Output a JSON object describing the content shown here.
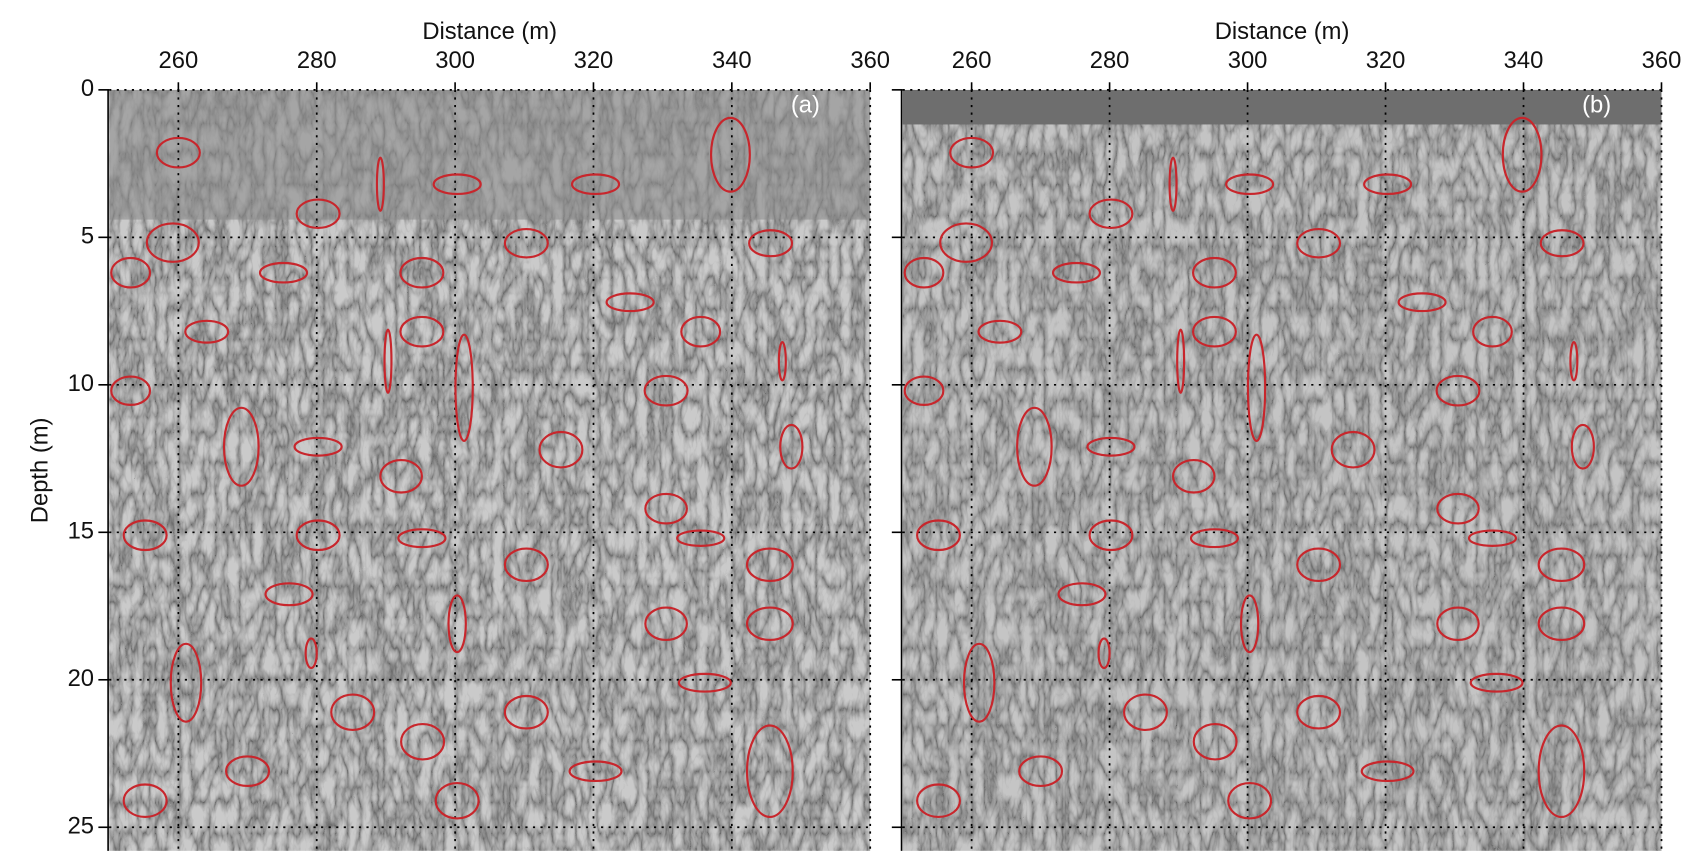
{
  "chart_data": [
    {
      "type": "annotated-image",
      "panel_label": "(a)",
      "xlabel": "Distance (m)",
      "ylabel": "Depth (m)",
      "xlim": [
        250,
        360
      ],
      "ylim": [
        0,
        25.8
      ],
      "xticks": [
        260,
        280,
        300,
        320,
        340,
        360
      ],
      "yticks": [
        0,
        5,
        10,
        15,
        20,
        25
      ],
      "grid": true,
      "show_ytick_labels": true,
      "color": "#c8262c",
      "ellipses": [
        [
          260,
          2.13,
          3.1,
          0.5
        ],
        [
          259.2,
          5.18,
          3.75,
          0.65
        ],
        [
          253.1,
          6.2,
          2.8,
          0.5
        ],
        [
          264.1,
          8.2,
          3.1,
          0.37
        ],
        [
          253.1,
          10.2,
          2.8,
          0.48
        ],
        [
          289.2,
          3.2,
          0.5,
          0.9
        ],
        [
          280.2,
          4.2,
          3.1,
          0.48
        ],
        [
          275.2,
          6.2,
          3.4,
          0.33
        ],
        [
          300.3,
          3.2,
          3.4,
          0.33
        ],
        [
          320.3,
          3.2,
          3.4,
          0.33
        ],
        [
          339.8,
          2.2,
          2.8,
          1.25
        ],
        [
          310.3,
          5.2,
          3.1,
          0.48
        ],
        [
          345.6,
          5.2,
          3.1,
          0.44
        ],
        [
          295.2,
          6.2,
          3.1,
          0.5
        ],
        [
          325.3,
          7.2,
          3.4,
          0.3
        ],
        [
          295.2,
          8.2,
          3.1,
          0.5
        ],
        [
          335.5,
          8.2,
          2.8,
          0.5
        ],
        [
          290.3,
          9.2,
          0.5,
          1.07
        ],
        [
          301.3,
          10.1,
          1.25,
          1.8
        ],
        [
          347.3,
          9.2,
          0.5,
          0.65
        ],
        [
          330.5,
          10.2,
          3.1,
          0.5
        ],
        [
          269.1,
          12.1,
          2.5,
          1.32
        ],
        [
          280.2,
          12.1,
          3.4,
          0.3
        ],
        [
          315.3,
          12.2,
          3.1,
          0.6
        ],
        [
          348.6,
          12.1,
          1.6,
          0.74
        ],
        [
          292.2,
          13.1,
          3,
          0.55
        ],
        [
          330.5,
          14.2,
          3,
          0.5
        ],
        [
          255.2,
          15.1,
          3.1,
          0.5
        ],
        [
          280.2,
          15.1,
          3.1,
          0.5
        ],
        [
          295.2,
          15.2,
          3.4,
          0.3
        ],
        [
          335.5,
          15.2,
          3.4,
          0.26
        ],
        [
          310.3,
          16.1,
          3.1,
          0.55
        ],
        [
          345.5,
          16.1,
          3.3,
          0.55
        ],
        [
          276,
          17.1,
          3.4,
          0.37
        ],
        [
          300.3,
          18.1,
          1.25,
          0.96
        ],
        [
          330.5,
          18.1,
          3,
          0.55
        ],
        [
          345.5,
          18.1,
          3.3,
          0.55
        ],
        [
          279.2,
          19.1,
          0.8,
          0.5
        ],
        [
          261.1,
          20.1,
          2.2,
          1.32
        ],
        [
          336.1,
          20.1,
          3.75,
          0.3
        ],
        [
          285.2,
          21.1,
          3.1,
          0.6
        ],
        [
          310.3,
          21.1,
          3.1,
          0.55
        ],
        [
          295.3,
          22.1,
          3.1,
          0.6
        ],
        [
          270,
          23.1,
          3.1,
          0.5
        ],
        [
          320.3,
          23.1,
          3.75,
          0.33
        ],
        [
          345.5,
          23.1,
          3.3,
          1.55
        ],
        [
          255.2,
          24.1,
          3.1,
          0.55
        ],
        [
          300.3,
          24.1,
          3.1,
          0.6
        ]
      ]
    },
    {
      "type": "annotated-image",
      "panel_label": "(b)",
      "xlabel": "Distance (m)",
      "xlim": [
        250,
        360
      ],
      "ylim": [
        0,
        25.8
      ],
      "xticks": [
        260,
        280,
        300,
        320,
        340,
        360
      ],
      "yticks": [
        0,
        5,
        10,
        15,
        20,
        25
      ],
      "grid": true,
      "show_ytick_labels": false,
      "color": "#c8262c",
      "ellipses": [
        [
          260,
          2.13,
          3.1,
          0.5
        ],
        [
          259.2,
          5.18,
          3.75,
          0.65
        ],
        [
          253.1,
          6.2,
          2.8,
          0.5
        ],
        [
          264.1,
          8.2,
          3.1,
          0.37
        ],
        [
          253.1,
          10.2,
          2.8,
          0.48
        ],
        [
          289.2,
          3.2,
          0.5,
          0.9
        ],
        [
          280.2,
          4.2,
          3.1,
          0.48
        ],
        [
          275.2,
          6.2,
          3.4,
          0.33
        ],
        [
          300.3,
          3.2,
          3.4,
          0.33
        ],
        [
          320.3,
          3.2,
          3.4,
          0.33
        ],
        [
          339.8,
          2.2,
          2.8,
          1.25
        ],
        [
          310.3,
          5.2,
          3.1,
          0.48
        ],
        [
          345.6,
          5.2,
          3.1,
          0.44
        ],
        [
          295.2,
          6.2,
          3.1,
          0.5
        ],
        [
          325.3,
          7.2,
          3.4,
          0.3
        ],
        [
          295.2,
          8.2,
          3.1,
          0.5
        ],
        [
          335.5,
          8.2,
          2.8,
          0.5
        ],
        [
          290.3,
          9.2,
          0.5,
          1.07
        ],
        [
          301.3,
          10.1,
          1.25,
          1.8
        ],
        [
          347.3,
          9.2,
          0.5,
          0.65
        ],
        [
          330.5,
          10.2,
          3.1,
          0.5
        ],
        [
          269.1,
          12.1,
          2.5,
          1.32
        ],
        [
          280.2,
          12.1,
          3.4,
          0.3
        ],
        [
          315.3,
          12.2,
          3.1,
          0.6
        ],
        [
          348.6,
          12.1,
          1.6,
          0.74
        ],
        [
          292.2,
          13.1,
          3,
          0.55
        ],
        [
          330.5,
          14.2,
          3,
          0.5
        ],
        [
          255.2,
          15.1,
          3.1,
          0.5
        ],
        [
          280.2,
          15.1,
          3.1,
          0.5
        ],
        [
          295.2,
          15.2,
          3.4,
          0.3
        ],
        [
          335.5,
          15.2,
          3.4,
          0.26
        ],
        [
          310.3,
          16.1,
          3.1,
          0.55
        ],
        [
          345.5,
          16.1,
          3.3,
          0.55
        ],
        [
          276,
          17.1,
          3.4,
          0.37
        ],
        [
          300.3,
          18.1,
          1.25,
          0.96
        ],
        [
          330.5,
          18.1,
          3,
          0.55
        ],
        [
          345.5,
          18.1,
          3.3,
          0.55
        ],
        [
          279.2,
          19.1,
          0.8,
          0.5
        ],
        [
          261.1,
          20.1,
          2.2,
          1.32
        ],
        [
          336.1,
          20.1,
          3.75,
          0.3
        ],
        [
          285.2,
          21.1,
          3.1,
          0.6
        ],
        [
          310.3,
          21.1,
          3.1,
          0.55
        ],
        [
          295.3,
          22.1,
          3.1,
          0.6
        ],
        [
          270,
          23.1,
          3.1,
          0.5
        ],
        [
          320.3,
          23.1,
          3.75,
          0.33
        ],
        [
          345.5,
          23.1,
          3.3,
          1.55
        ],
        [
          255.2,
          24.1,
          3.1,
          0.55
        ],
        [
          300.3,
          24.1,
          3.1,
          0.6
        ]
      ]
    }
  ]
}
